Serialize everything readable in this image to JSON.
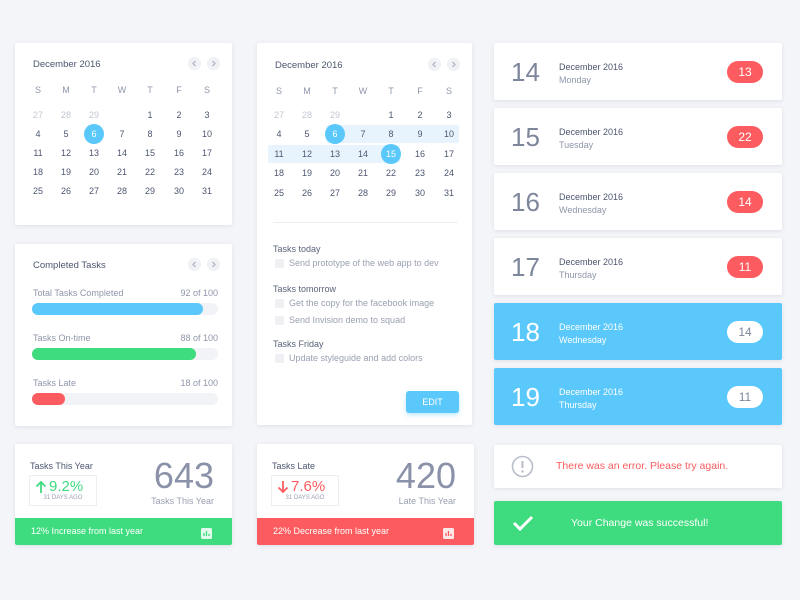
{
  "calendars": [
    {
      "title": "December 2016",
      "weekdays": [
        "S",
        "M",
        "T",
        "W",
        "T",
        "F",
        "S"
      ],
      "weeks": [
        [
          {
            "day": 27,
            "muted": true
          },
          {
            "day": 28,
            "muted": true
          },
          {
            "day": 29,
            "muted": true
          },
          null,
          {
            "day": 1
          },
          {
            "day": 2
          },
          {
            "day": 3
          }
        ],
        [
          {
            "day": 4
          },
          {
            "day": 5
          },
          {
            "day": 6
          },
          {
            "day": 7
          },
          {
            "day": 8
          },
          {
            "day": 9
          },
          {
            "day": 10
          }
        ],
        [
          {
            "day": 11
          },
          {
            "day": 12
          },
          {
            "day": 13
          },
          {
            "day": 14
          },
          {
            "day": 15
          },
          {
            "day": 16
          },
          {
            "day": 17
          }
        ],
        [
          {
            "day": 18
          },
          {
            "day": 19
          },
          {
            "day": 20
          },
          {
            "day": 21
          },
          {
            "day": 22
          },
          {
            "day": 23
          },
          {
            "day": 24
          }
        ],
        [
          {
            "day": 25
          },
          {
            "day": 26
          },
          {
            "day": 27
          },
          {
            "day": 28
          },
          {
            "day": 29
          },
          {
            "day": 30
          },
          {
            "day": 31
          }
        ]
      ],
      "selected": [
        6
      ]
    },
    {
      "title": "December 2016",
      "weekdays": [
        "S",
        "M",
        "T",
        "W",
        "T",
        "F",
        "S"
      ],
      "weeks": [
        [
          {
            "day": 27,
            "muted": true
          },
          {
            "day": 28,
            "muted": true
          },
          {
            "day": 29,
            "muted": true
          },
          null,
          {
            "day": 1
          },
          {
            "day": 2
          },
          {
            "day": 3
          }
        ],
        [
          {
            "day": 4
          },
          {
            "day": 5
          },
          {
            "day": 6
          },
          {
            "day": 7
          },
          {
            "day": 8
          },
          {
            "day": 9
          },
          {
            "day": 10
          }
        ],
        [
          {
            "day": 11
          },
          {
            "day": 12
          },
          {
            "day": 13
          },
          {
            "day": 14
          },
          {
            "day": 15
          },
          {
            "day": 16
          },
          {
            "day": 17
          }
        ],
        [
          {
            "day": 18
          },
          {
            "day": 19
          },
          {
            "day": 20
          },
          {
            "day": 21
          },
          {
            "day": 22
          },
          {
            "day": 23
          },
          {
            "day": 24
          }
        ],
        [
          {
            "day": 25
          },
          {
            "day": 26
          },
          {
            "day": 27
          },
          {
            "day": 28
          },
          {
            "day": 29
          },
          {
            "day": 30
          },
          {
            "day": 31
          }
        ]
      ],
      "selected": [
        6,
        15
      ],
      "range": [
        6,
        15
      ]
    }
  ],
  "completed_tasks": {
    "title": "Completed Tasks",
    "items": [
      {
        "label": "Total Tasks Completed",
        "value": 92,
        "max": 100,
        "value_label": "92 of 100",
        "color": "#5ac8fa"
      },
      {
        "label": "Tasks On-time",
        "value": 88,
        "max": 100,
        "value_label": "88 of 100",
        "color": "#3fdb7f"
      },
      {
        "label": "Tasks Late",
        "value": 18,
        "max": 100,
        "value_label": "18 of 100",
        "color": "#fc5c5f"
      }
    ]
  },
  "task_list": {
    "groups": [
      {
        "title": "Tasks today",
        "items": [
          "Send prototype of the web app to dev"
        ]
      },
      {
        "title": "Tasks tomorrow",
        "items": [
          "Get the copy for the facebook image",
          "Send Invision demo to squad"
        ]
      },
      {
        "title": "Tasks Friday",
        "items": [
          "Update styleguide and add colors"
        ]
      }
    ],
    "button": "EDIT"
  },
  "stats": [
    {
      "title": "Tasks This Year",
      "change": "9.2%",
      "direction": "up",
      "period": "31 DAYS AGO",
      "value": "643",
      "caption": "Tasks This Year",
      "footer": "12% Increase from last year",
      "color": "#3fdb7f"
    },
    {
      "title": "Tasks Late",
      "change": "7.6%",
      "direction": "down",
      "period": "31 DAYS AGO",
      "value": "420",
      "caption": "Late This Year",
      "footer": "22% Decrease from last year",
      "color": "#fc5c5f"
    }
  ],
  "days": [
    {
      "date": "14",
      "month": "December 2016",
      "weekday": "Monday",
      "count": "13",
      "highlighted": false
    },
    {
      "date": "15",
      "month": "December 2016",
      "weekday": "Tuesday",
      "count": "22",
      "highlighted": false
    },
    {
      "date": "16",
      "month": "December 2016",
      "weekday": "Wednesday",
      "count": "14",
      "highlighted": false
    },
    {
      "date": "17",
      "month": "December 2016",
      "weekday": "Thursday",
      "count": "11",
      "highlighted": false
    },
    {
      "date": "18",
      "month": "December 2016",
      "weekday": "Wednesday",
      "count": "14",
      "highlighted": true
    },
    {
      "date": "19",
      "month": "December 2016",
      "weekday": "Thursday",
      "count": "11",
      "highlighted": true
    }
  ],
  "alerts": {
    "error": "There was an error. Please try again.",
    "success": "Your Change was successful!"
  }
}
